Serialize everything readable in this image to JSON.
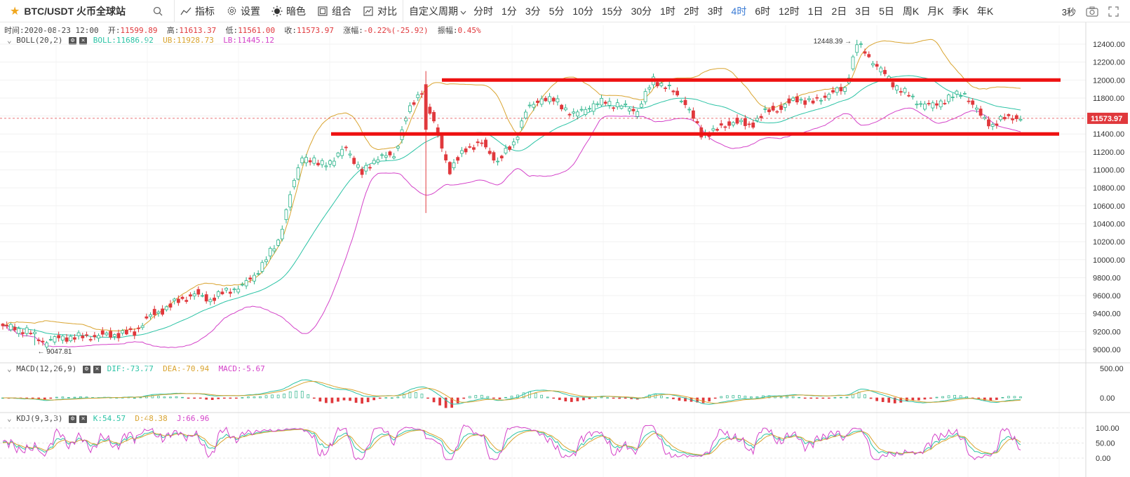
{
  "toolbar": {
    "symbol": "BTC/USDT 火币全球站",
    "indicators_label": "指标",
    "settings_label": "设置",
    "theme_label": "暗色",
    "combine_label": "组合",
    "compare_label": "对比",
    "custom_period_label": "自定义周期",
    "periods": [
      "分时",
      "1分",
      "3分",
      "5分",
      "10分",
      "15分",
      "30分",
      "1时",
      "2时",
      "3时",
      "4时",
      "6时",
      "12时",
      "1日",
      "2日",
      "3日",
      "5日",
      "周K",
      "月K",
      "季K",
      "年K"
    ],
    "active_period": "4时",
    "refresh_label": "3秒"
  },
  "ohlc": {
    "time_label": "时间:",
    "time": "2020-08-23 12:00",
    "open_label": "开:",
    "open": "11599.89",
    "high_label": "高:",
    "high": "11613.37",
    "low_label": "低:",
    "low": "11561.00",
    "close_label": "收:",
    "close": "11573.97",
    "change_label": "涨幅:",
    "change": "-0.22%(-25.92)",
    "amp_label": "振幅:",
    "amp": "0.45%"
  },
  "boll": {
    "name": "BOLL(20,2)",
    "boll": "BOLL:11686.92",
    "ub": "UB:11928.73",
    "lb": "LB:11445.12"
  },
  "macd": {
    "name": "MACD(12,26,9)",
    "dif": "DIF:-73.77",
    "dea": "DEA:-70.94",
    "macd": "MACD:-5.67"
  },
  "kdj": {
    "name": "KDJ(9,3,3)",
    "k": "K:54.57",
    "d": "D:48.38",
    "j": "J:66.96"
  },
  "colors": {
    "up": "#2bb38a",
    "down": "#e0383c",
    "mid": "#2bc3a5",
    "ub": "#d9a430",
    "lb": "#d443c9",
    "resistance": "#ee1111",
    "active": "#3a7bd5"
  },
  "chart_data": {
    "type": "candlestick",
    "price_axis": {
      "ticks": [
        "12400.00",
        "12200.00",
        "12000.00",
        "11800.00",
        "11600.00",
        "11400.00",
        "11200.00",
        "11000.00",
        "10800.00",
        "10600.00",
        "10400.00",
        "10200.00",
        "10000.00",
        "9800.00",
        "9600.00",
        "9400.00",
        "9200.00",
        "9000.00"
      ],
      "range": [
        8900,
        12550
      ]
    },
    "last_price": "11573.97",
    "high_marker": "12448.39",
    "low_marker": "9047.81",
    "horizontal_lines": [
      12000,
      11400
    ],
    "macd_axis": {
      "ticks": [
        "500.00",
        "0.00"
      ]
    },
    "kdj_axis": {
      "ticks": [
        "100.00",
        "50.00",
        "0.00"
      ]
    }
  }
}
